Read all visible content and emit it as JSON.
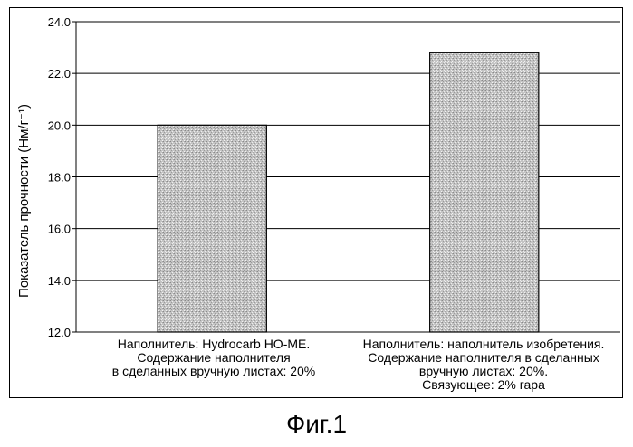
{
  "chart_data": {
    "type": "bar",
    "categories": [
      "Наполнитель: Hydrocarb HO-ME.\nСодержание наполнителя\nв сделанных вручную листах: 20%",
      "Наполнитель: наполнитель изобретения.\nСодержание наполнителя в сделанных\nвручную листах: 20%.\nСвязующее: 2% гара"
    ],
    "values": [
      20.0,
      22.8
    ],
    "ylabel": "Показатель прочности (Нм/г⁻¹)",
    "ylim": [
      12.0,
      24.0
    ],
    "yticks": [
      "12.0",
      "14.0",
      "16.0",
      "18.0",
      "20.0",
      "22.0",
      "24.0"
    ],
    "grid": true,
    "bar_color": "#c8c8c8"
  },
  "caption": "Фиг.1"
}
